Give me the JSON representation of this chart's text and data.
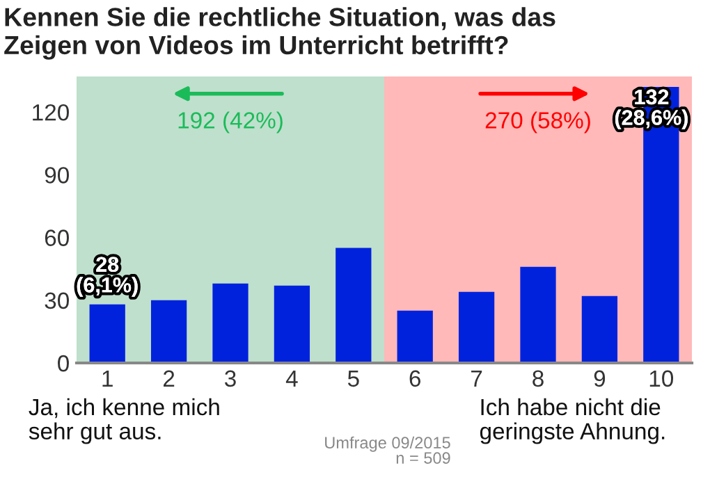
{
  "chart_data": {
    "type": "bar",
    "title": "Kennen Sie die rechtliche Situation, was das\nZeigen von Videos im Unterricht betrifft?",
    "categories": [
      "1",
      "2",
      "3",
      "4",
      "5",
      "6",
      "7",
      "8",
      "9",
      "10"
    ],
    "values": [
      28,
      30,
      38,
      37,
      55,
      25,
      34,
      46,
      32,
      132
    ],
    "color": "#0022dd",
    "ylim": [
      0,
      137
    ],
    "yticks": [
      0,
      30,
      60,
      90,
      120
    ],
    "grid": false,
    "bands": [
      {
        "axis": "x",
        "from": "1",
        "to": "5",
        "label": "192 (42%)",
        "color": "#bfe0cc"
      },
      {
        "axis": "x",
        "from": "6",
        "to": "10",
        "label": "270 (58%)",
        "color": "#ffb9b9"
      }
    ],
    "annotations": [
      {
        "text": "28\n(6,1%)",
        "x": "1",
        "y": 28
      },
      {
        "text": "132\n(28,6%)",
        "x": "10",
        "y": 132
      },
      "Ja, ich kenne mich\nsehr gut aus.",
      "Ich habe nicht die\ngeringste Ahnung.",
      "Umfrage 09/2015\nn = 509"
    ]
  }
}
